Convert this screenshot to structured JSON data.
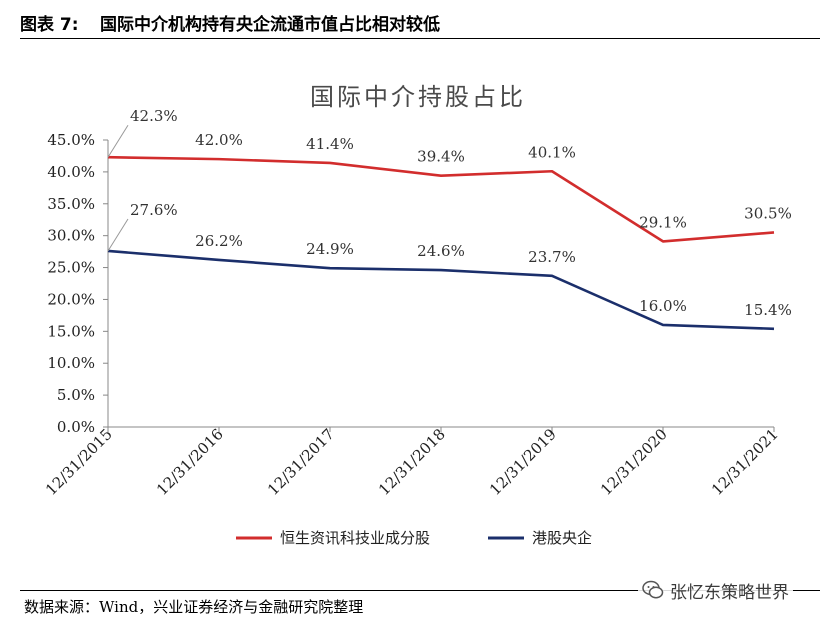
{
  "header": {
    "figure_label": "图表 7:",
    "title": "国际中介机构持有央企流通市值占比相对较低"
  },
  "chart_data": {
    "type": "line",
    "title": "国际中介持股占比",
    "categories": [
      "12/31/2015",
      "12/31/2016",
      "12/31/2017",
      "12/31/2018",
      "12/31/2019",
      "12/31/2020",
      "12/31/2021"
    ],
    "y_ticks": [
      "0.0%",
      "5.0%",
      "10.0%",
      "15.0%",
      "20.0%",
      "25.0%",
      "30.0%",
      "35.0%",
      "40.0%",
      "45.0%"
    ],
    "ylim": [
      0,
      45
    ],
    "grid": false,
    "legend_position": "bottom",
    "series": [
      {
        "name": "恒生资讯科技业成分股",
        "color": "#d22d2d",
        "values": [
          42.3,
          42.0,
          41.4,
          39.4,
          40.1,
          29.1,
          30.5
        ],
        "labels": [
          "42.3%",
          "42.0%",
          "41.4%",
          "39.4%",
          "40.1%",
          "29.1%",
          "30.5%"
        ]
      },
      {
        "name": "港股央企",
        "color": "#1b2f6b",
        "values": [
          27.6,
          26.2,
          24.9,
          24.6,
          23.7,
          16.0,
          15.4
        ],
        "labels": [
          "27.6%",
          "26.2%",
          "24.9%",
          "24.6%",
          "23.7%",
          "16.0%",
          "15.4%"
        ]
      }
    ]
  },
  "footer": {
    "source": "数据来源：Wind，兴业证券经济与金融研究院整理",
    "watermark": "张忆东策略世界",
    "watermark_icon": "wechat-icon"
  }
}
